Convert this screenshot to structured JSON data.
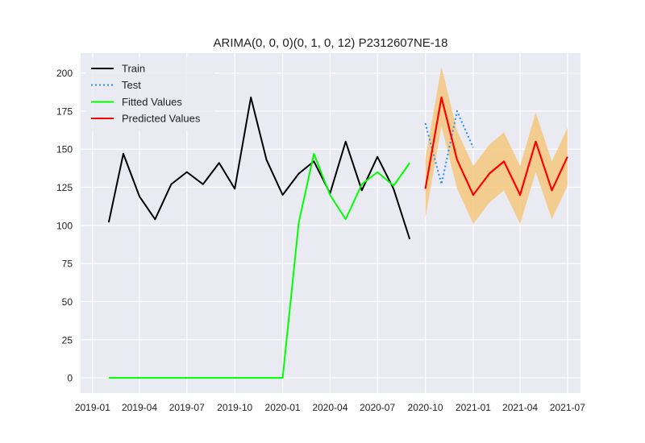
{
  "chart_data": {
    "type": "line",
    "title": "ARIMA(0, 0, 0)(0, 1, 0, 12) P2312607NE-18",
    "xlabel": "",
    "ylabel": "",
    "ylim": [
      -10,
      213
    ],
    "xlim": [
      "2018-12-09",
      "2021-07-26"
    ],
    "x_ticks": [
      "2019-01",
      "2019-04",
      "2019-07",
      "2019-10",
      "2020-01",
      "2020-04",
      "2020-07",
      "2020-10",
      "2021-01",
      "2021-04",
      "2021-07"
    ],
    "y_ticks": [
      0,
      25,
      50,
      75,
      100,
      125,
      150,
      175,
      200
    ],
    "grid": true,
    "legend_position": "top-left",
    "colors": {
      "background": "#eaeaf2",
      "grid": "#ffffff",
      "train": "#000000",
      "test": "#1e90ff",
      "fitted": "#00ff00",
      "predicted": "#ff0000",
      "confidence_band": "#f5c77e"
    },
    "series": [
      {
        "name": "Train",
        "style": "solid",
        "x": [
          "2019-02-01",
          "2019-03-01",
          "2019-04-01",
          "2019-05-01",
          "2019-06-01",
          "2019-07-01",
          "2019-08-01",
          "2019-09-01",
          "2019-10-01",
          "2019-11-01",
          "2019-12-01",
          "2020-01-01",
          "2020-02-01",
          "2020-03-01",
          "2020-04-01",
          "2020-05-01",
          "2020-06-01",
          "2020-07-01",
          "2020-08-01",
          "2020-09-01"
        ],
        "values": [
          102,
          147,
          119,
          104,
          127,
          135,
          127,
          141,
          124,
          184,
          143,
          120,
          134,
          142,
          121,
          155,
          123,
          145,
          124,
          91
        ]
      },
      {
        "name": "Test",
        "style": "dotted",
        "x": [
          "2020-10-01",
          "2020-11-01",
          "2020-12-01",
          "2021-01-01"
        ],
        "values": [
          167,
          127,
          175,
          151
        ]
      },
      {
        "name": "Fitted Values",
        "style": "solid",
        "x": [
          "2019-02-01",
          "2019-03-01",
          "2019-04-01",
          "2019-05-01",
          "2019-06-01",
          "2019-07-01",
          "2019-08-01",
          "2019-09-01",
          "2019-10-01",
          "2019-11-01",
          "2019-12-01",
          "2020-01-01",
          "2020-02-01",
          "2020-03-01",
          "2020-04-01",
          "2020-05-01",
          "2020-06-01",
          "2020-07-01",
          "2020-08-01",
          "2020-09-01"
        ],
        "values": [
          0,
          0,
          0,
          0,
          0,
          0,
          0,
          0,
          0,
          0,
          0,
          0,
          102,
          147,
          120,
          104,
          127,
          135,
          126,
          141
        ]
      },
      {
        "name": "Predicted Values",
        "style": "solid",
        "x": [
          "2020-10-01",
          "2020-11-01",
          "2020-12-01",
          "2021-01-01",
          "2021-02-01",
          "2021-03-01",
          "2021-04-01",
          "2021-05-01",
          "2021-06-01",
          "2021-07-01"
        ],
        "values": [
          124,
          184,
          143,
          120,
          134,
          142,
          120,
          155,
          123,
          145
        ],
        "lower": [
          105,
          165,
          124,
          101,
          115,
          123,
          101,
          135,
          104,
          126
        ],
        "upper": [
          144,
          204,
          162,
          139,
          153,
          161,
          139,
          174,
          142,
          164
        ]
      }
    ]
  }
}
